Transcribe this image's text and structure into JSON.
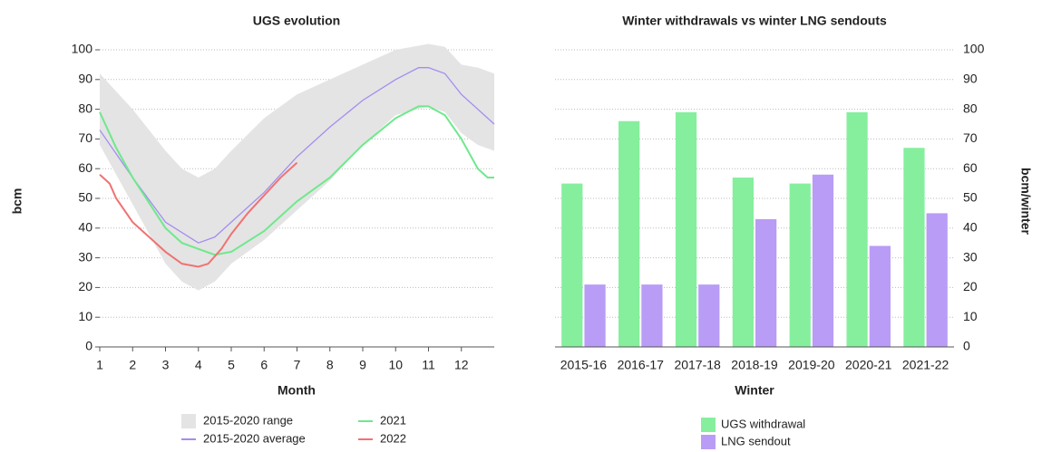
{
  "chart_data": [
    {
      "type": "line",
      "title": "UGS evolution",
      "x_label": "Month",
      "y_label": "bcm",
      "xlim": [
        1,
        13
      ],
      "xticks": [
        1,
        2,
        3,
        4,
        5,
        6,
        7,
        8,
        9,
        10,
        11,
        12
      ],
      "ylim": [
        0,
        100
      ],
      "yticks": [
        0,
        10,
        20,
        30,
        40,
        50,
        60,
        70,
        80,
        90,
        100
      ],
      "grid": true,
      "series": [
        {
          "name": "2015-2020 range",
          "kind": "band",
          "color": "#e4e4e4",
          "x": [
            1,
            2,
            3,
            3.5,
            4,
            4.5,
            5,
            6,
            7,
            8,
            9,
            10,
            11,
            11.5,
            12,
            12.5,
            13
          ],
          "high": [
            92,
            80,
            66,
            60,
            57,
            60,
            66,
            77,
            85,
            90,
            95,
            100,
            102,
            101,
            95,
            94,
            92
          ],
          "low": [
            68,
            48,
            28,
            22,
            19,
            22,
            28,
            36,
            46,
            56,
            68,
            78,
            81,
            79,
            72,
            68,
            66
          ]
        },
        {
          "name": "2015-2020 average",
          "kind": "line",
          "color": "#a58cf0",
          "x": [
            1,
            2,
            3,
            4,
            4.5,
            5,
            6,
            7,
            8,
            9,
            10,
            10.7,
            11,
            11.5,
            12,
            13
          ],
          "values": [
            73,
            57,
            42,
            35,
            37,
            42,
            52,
            64,
            74,
            83,
            90,
            94,
            94,
            92,
            85,
            75
          ]
        },
        {
          "name": "2021",
          "kind": "line",
          "color": "#6fe88c",
          "x": [
            1,
            1.5,
            2,
            3,
            3.5,
            4,
            4.5,
            5,
            6,
            7,
            8,
            9,
            10,
            10.7,
            11,
            11.5,
            12,
            12.5,
            12.8,
            13
          ],
          "values": [
            79,
            67,
            57,
            40,
            35,
            33,
            31,
            32,
            39,
            49,
            57,
            68,
            77,
            81,
            81,
            78,
            70,
            60,
            57,
            57
          ]
        },
        {
          "name": "2022",
          "kind": "line",
          "color": "#f07272",
          "x": [
            1,
            1.3,
            1.5,
            2,
            2.5,
            3,
            3.5,
            4,
            4.3,
            4.7,
            5,
            5.5,
            6,
            6.5,
            7
          ],
          "values": [
            58,
            55,
            50,
            42,
            37,
            32,
            28,
            27,
            28,
            33,
            38,
            45,
            51,
            57,
            62
          ]
        }
      ]
    },
    {
      "type": "bar",
      "title": "Winter withdrawals vs winter LNG sendouts",
      "x_label": "Winter",
      "y_label": "bcm/winter",
      "categories": [
        "2015-16",
        "2016-17",
        "2017-18",
        "2018-19",
        "2019-20",
        "2020-21",
        "2021-22"
      ],
      "y2lim": [
        0,
        100
      ],
      "y2ticks": [
        0,
        10,
        20,
        30,
        40,
        50,
        60,
        70,
        80,
        90,
        100
      ],
      "grid": true,
      "series": [
        {
          "name": "UGS withdrawal",
          "color": "#86ef9e",
          "axis": "y2",
          "values": [
            55,
            76,
            79,
            57,
            55,
            79,
            67
          ]
        },
        {
          "name": "LNG sendout",
          "color": "#b99cf5",
          "axis": "y2",
          "values": [
            21,
            21,
            21,
            43,
            58,
            34,
            45
          ]
        }
      ]
    }
  ]
}
